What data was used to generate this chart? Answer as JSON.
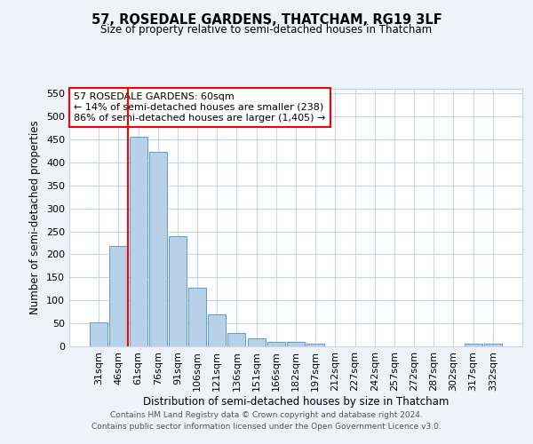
{
  "title": "57, ROSEDALE GARDENS, THATCHAM, RG19 3LF",
  "subtitle": "Size of property relative to semi-detached houses in Thatcham",
  "xlabel": "Distribution of semi-detached houses by size in Thatcham",
  "ylabel": "Number of semi-detached properties",
  "bar_labels": [
    "31sqm",
    "46sqm",
    "61sqm",
    "76sqm",
    "91sqm",
    "106sqm",
    "121sqm",
    "136sqm",
    "151sqm",
    "166sqm",
    "182sqm",
    "197sqm",
    "212sqm",
    "227sqm",
    "242sqm",
    "257sqm",
    "272sqm",
    "287sqm",
    "302sqm",
    "317sqm",
    "332sqm"
  ],
  "bar_values": [
    52,
    218,
    456,
    423,
    240,
    128,
    70,
    29,
    18,
    10,
    10,
    5,
    0,
    0,
    0,
    0,
    0,
    0,
    0,
    5,
    5
  ],
  "bar_color": "#b8d0e8",
  "bar_edge_color": "#5b9bd5",
  "property_line_bin": 2,
  "property_sqm": 60,
  "annotation_text": "57 ROSEDALE GARDENS: 60sqm\n← 14% of semi-detached houses are smaller (238)\n86% of semi-detached houses are larger (1,405) →",
  "annotation_box_color": "white",
  "annotation_box_edge": "red",
  "line_color": "red",
  "ylim": [
    0,
    560
  ],
  "yticks": [
    0,
    50,
    100,
    150,
    200,
    250,
    300,
    350,
    400,
    450,
    500,
    550
  ],
  "footer1": "Contains HM Land Registry data © Crown copyright and database right 2024.",
  "footer2": "Contains public sector information licensed under the Open Government Licence v3.0.",
  "bg_color": "#eef2f9",
  "plot_bg_color": "#ffffff",
  "grid_color": "#c8d4e8"
}
